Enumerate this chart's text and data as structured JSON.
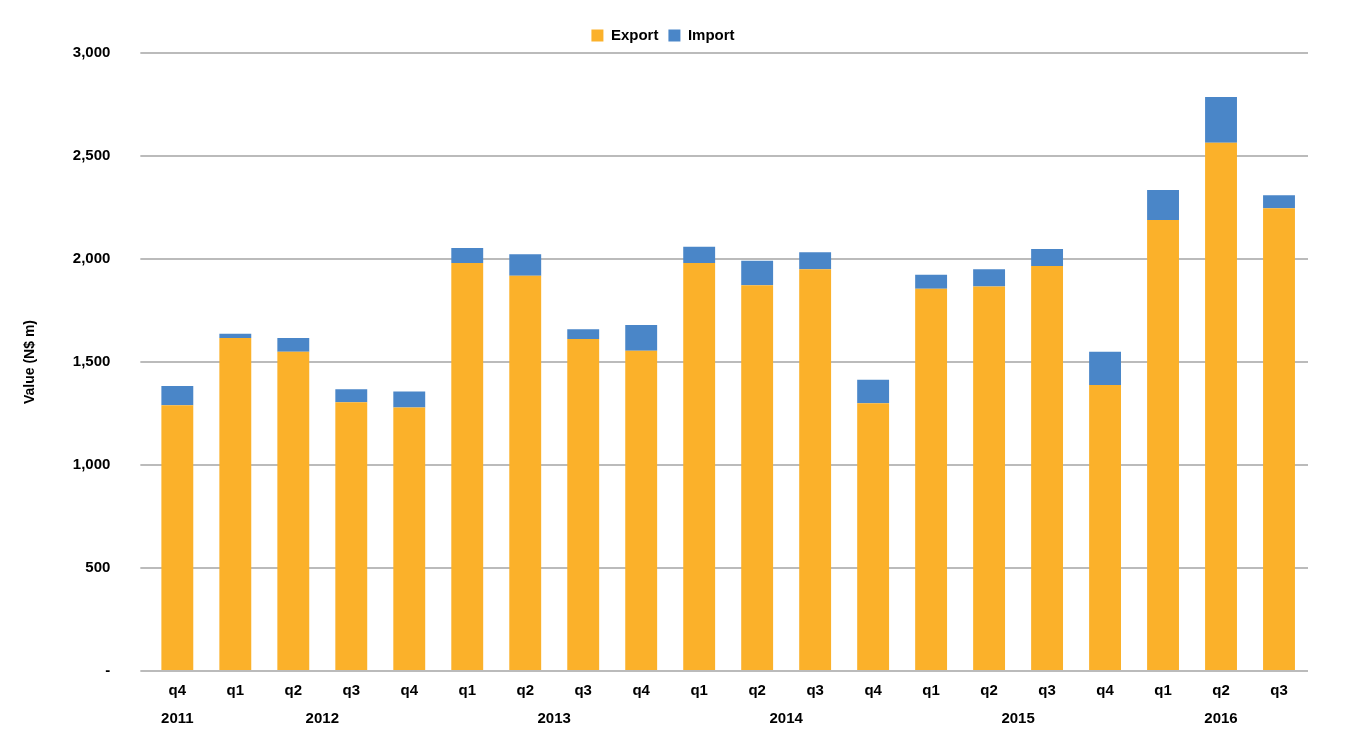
{
  "chart_data": {
    "type": "bar",
    "stacked": true,
    "ylabel": "Value (N$ m)",
    "categories": [
      "q4",
      "q1",
      "q2",
      "q3",
      "q4",
      "q1",
      "q2",
      "q3",
      "q4",
      "q1",
      "q2",
      "q3",
      "q4",
      "q1",
      "q2",
      "q3",
      "q4",
      "q1",
      "q2",
      "q3"
    ],
    "series": [
      {
        "name": "Export",
        "color": "#fbb12a",
        "values": [
          1290,
          1617,
          1550,
          1305,
          1279,
          1981,
          1919,
          1612,
          1555,
          1981,
          1872,
          1950,
          1300,
          1856,
          1867,
          1966,
          1388,
          2189,
          2564,
          2246
        ]
      },
      {
        "name": "Import",
        "color": "#4a86c8",
        "values": [
          93,
          20,
          67,
          63,
          78,
          73,
          104,
          47,
          125,
          78,
          120,
          83,
          114,
          68,
          83,
          83,
          162,
          146,
          223,
          63
        ]
      }
    ],
    "ylim": [
      0,
      3000
    ],
    "yticks": [
      {
        "value": 0,
        "label": "-"
      },
      500,
      {
        "value": 1000,
        "label": "1,000"
      },
      {
        "value": 1500,
        "label": "1,500"
      },
      {
        "value": 2000,
        "label": "2,000"
      },
      {
        "value": 2500,
        "label": "2,500"
      },
      {
        "value": 3000,
        "label": "3,000"
      }
    ],
    "grid": "y",
    "legend": "top",
    "annotations": [
      "2011",
      "2012",
      "2013",
      "2014",
      "2015",
      "2016"
    ]
  }
}
